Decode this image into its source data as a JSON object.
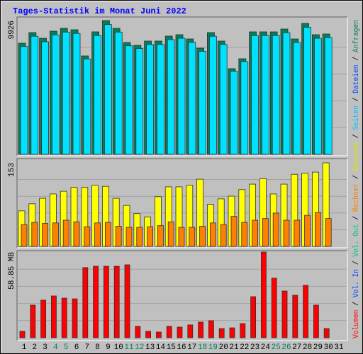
{
  "title": "Tages-Statistik im Monat Juni 2022",
  "x_axis": {
    "categories": [
      "1",
      "2",
      "3",
      "4",
      "5",
      "6",
      "7",
      "8",
      "9",
      "10",
      "11",
      "12",
      "13",
      "14",
      "15",
      "16",
      "17",
      "18",
      "19",
      "20",
      "21",
      "22",
      "23",
      "24",
      "25",
      "26",
      "27",
      "28",
      "29",
      "30",
      "31"
    ],
    "weekend_index": [
      3,
      4,
      10,
      11,
      17,
      18,
      24,
      25
    ],
    "color": "#000000",
    "weekend_color": "#00805c"
  },
  "side_legend": {
    "separator": " / ",
    "items": [
      {
        "text": "Volumen",
        "color": "#ff0000"
      },
      {
        "text": "Vol. In",
        "color": "#0040ff"
      },
      {
        "text": "Vol. Out",
        "color": "#00c080"
      },
      {
        "text": "Rechner",
        "color": "#ff8000"
      },
      {
        "text": "Besuche",
        "color": "#e0e000"
      },
      {
        "text": "Seiten",
        "color": "#00c0ff"
      },
      {
        "text": "Dateien",
        "color": "#0040ff"
      },
      {
        "text": "Anfragen",
        "color": "#00805c"
      }
    ]
  },
  "chart_data": [
    {
      "type": "bar",
      "ylim": [
        0,
        9926
      ],
      "yticks": [
        9926
      ],
      "series": [
        {
          "name": "Anfragen",
          "color": "#00805c",
          "values": [
            8245,
            9033,
            8613,
            9138,
            9348,
            9243,
            7300,
            9086,
            9926,
            9348,
            8298,
            8088,
            8403,
            8403,
            8771,
            8876,
            8560,
            7878,
            9033,
            8403,
            6355,
            7090,
            9086,
            9086,
            9086,
            9296,
            8560,
            9716,
            8876,
            8928
          ]
        },
        {
          "name": "Seiten",
          "color": "#00e0ff",
          "values": [
            8000,
            8760,
            8350,
            8860,
            9070,
            8970,
            7080,
            8810,
            9630,
            9070,
            8050,
            7850,
            8150,
            8150,
            8510,
            8610,
            8300,
            7640,
            8760,
            8150,
            6160,
            6880,
            8810,
            8810,
            8810,
            9020,
            8300,
            9420,
            8610,
            8660
          ]
        }
      ]
    },
    {
      "type": "bar",
      "ylim": [
        0,
        153
      ],
      "yticks": [
        153
      ],
      "series": [
        {
          "name": "Besuche",
          "color": "#ffff00",
          "values": [
            65,
            78,
            88,
            96,
            101,
            108,
            108,
            112,
            110,
            88,
            75,
            60,
            54,
            91,
            109,
            109,
            112,
            123,
            77,
            87,
            92,
            104,
            114,
            124,
            96,
            114,
            132,
            134,
            136,
            153
          ]
        },
        {
          "name": "Rechner",
          "color": "#ff8000",
          "values": [
            40,
            44,
            42,
            43,
            48,
            45,
            36,
            43,
            44,
            37,
            35,
            35,
            36,
            38,
            45,
            35,
            35,
            37,
            43,
            40,
            55,
            44,
            48,
            51,
            61,
            48,
            48,
            57,
            62,
            51
          ]
        }
      ]
    },
    {
      "type": "bar",
      "ylim": [
        0,
        58.85
      ],
      "yticks": [
        {
          "value": 58.85,
          "label": "58.85 MB"
        }
      ],
      "series": [
        {
          "name": "Volumen",
          "color": "#ff0000",
          "values": [
            4.4,
            22.4,
            25.8,
            28.7,
            27.2,
            26.7,
            48.2,
            49.1,
            49.1,
            49.1,
            50.1,
            7.8,
            4.4,
            3.9,
            7.8,
            7.3,
            8.8,
            10.7,
            11.7,
            6.3,
            6.8,
            9.7,
            28.2,
            58.85,
            40.9,
            32.1,
            29.2,
            36.0,
            22.4,
            6.3
          ]
        }
      ]
    }
  ]
}
